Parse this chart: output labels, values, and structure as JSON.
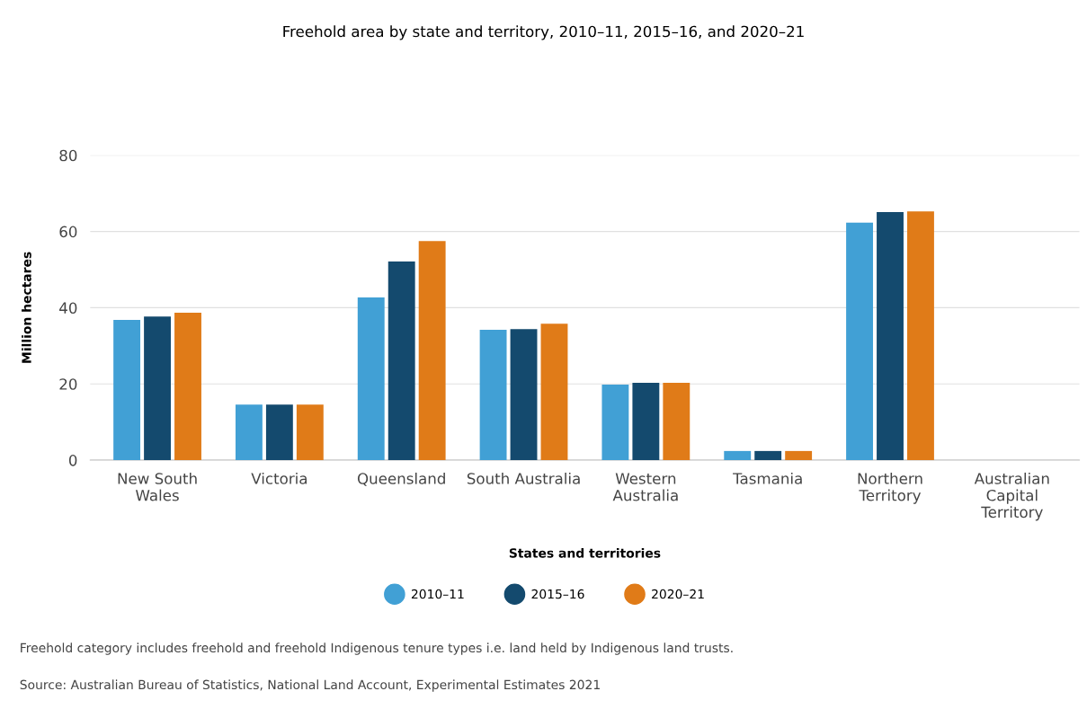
{
  "chart_data": {
    "type": "bar",
    "title": "Freehold area by state and territory, 2010–11, 2015–16, and 2020–21",
    "xlabel": "States and territories",
    "ylabel": "Million hectares",
    "categories": [
      "New South\nWales",
      "Victoria",
      "Queensland",
      "South Australia",
      "Western\nAustralia",
      "Tasmania",
      "Northern\nTerritory",
      "Australian\nCapital\nTerritory"
    ],
    "series": [
      {
        "name": "2010–11",
        "color": "#41a0d5",
        "values": [
          36.8,
          14.6,
          42.7,
          34.2,
          19.8,
          2.4,
          62.3,
          0
        ]
      },
      {
        "name": "2015–16",
        "color": "#144a6e",
        "values": [
          37.7,
          14.6,
          52.1,
          34.4,
          20.3,
          2.4,
          65.1,
          0
        ]
      },
      {
        "name": "2020–21",
        "color": "#e07b18",
        "values": [
          38.7,
          14.6,
          57.5,
          35.8,
          20.3,
          2.4,
          65.3,
          0
        ]
      }
    ],
    "ylim": [
      0,
      80
    ],
    "yticks": [
      0,
      20,
      40,
      60,
      80
    ],
    "grid": "y",
    "legend": "bottom",
    "annotations": [
      "Freehold category includes freehold and freehold Indigenous tenure types i.e. land held by Indigenous land trusts.",
      "Source: Australian Bureau of Statistics, National Land Account, Experimental Estimates 2021"
    ]
  }
}
